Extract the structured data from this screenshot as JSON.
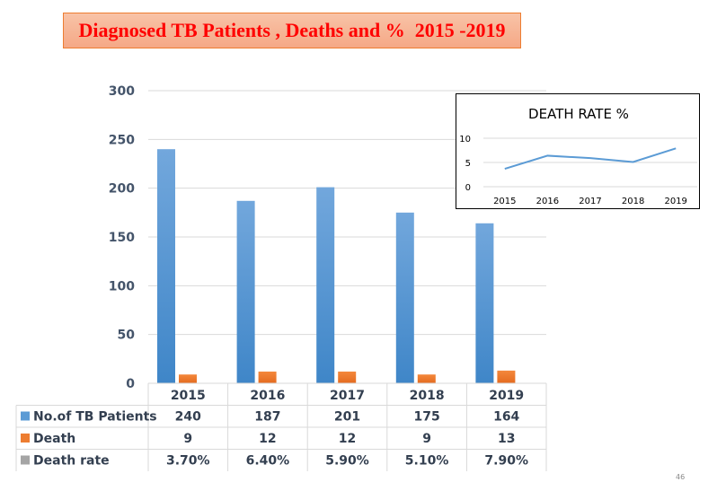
{
  "title": "Diagnosed TB Patients , Deaths and %  2015 -2019",
  "page_number": "46",
  "colors": {
    "patients": "#5B9BD5",
    "death": "#ED7D31",
    "rate": "#A5A5A5",
    "title_text": "#FF0000"
  },
  "chart_data": [
    {
      "type": "bar",
      "title": "Diagnosed TB Patients , Deaths and %  2015 -2019",
      "categories": [
        "2015",
        "2016",
        "2017",
        "2018",
        "2019"
      ],
      "ylim": [
        0,
        300
      ],
      "yticks": [
        0,
        50,
        100,
        150,
        200,
        250,
        300
      ],
      "grid": true,
      "legend": "data-table",
      "series": [
        {
          "name": "No.of TB Patients",
          "values": [
            240,
            187,
            201,
            175,
            164
          ],
          "labels": [
            "240",
            "187",
            "201",
            "175",
            "164"
          ]
        },
        {
          "name": "Death",
          "values": [
            9,
            12,
            12,
            9,
            13
          ],
          "labels": [
            "9",
            "12",
            "12",
            "9",
            "13"
          ]
        },
        {
          "name": "Death rate",
          "values": [
            3.7,
            6.4,
            5.9,
            5.1,
            7.9
          ],
          "labels": [
            "3.70%",
            "6.40%",
            "5.90%",
            "5.10%",
            "7.90%"
          ]
        }
      ]
    },
    {
      "type": "line",
      "title": "DEATH RATE %",
      "categories": [
        "2015",
        "2016",
        "2017",
        "2018",
        "2019"
      ],
      "ylim": [
        0,
        10
      ],
      "yticks": [
        0,
        5,
        10
      ],
      "grid": true,
      "series": [
        {
          "name": "Death rate",
          "values": [
            3.7,
            6.4,
            5.9,
            5.1,
            7.9
          ]
        }
      ]
    }
  ]
}
